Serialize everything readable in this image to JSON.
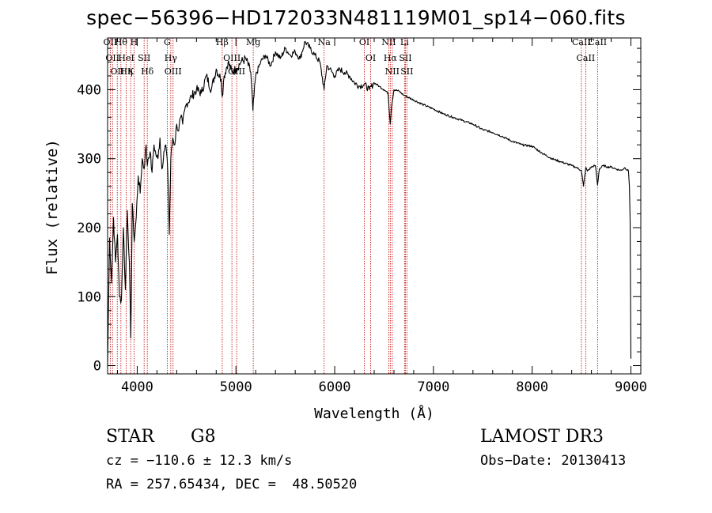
{
  "chart_data": {
    "type": "line",
    "title": "spec−56396−HD172033N481119M01_sp14−060.fits",
    "xlabel": "Wavelength (Å)",
    "ylabel": "Flux (relative)",
    "xlim": [
      3700,
      9100
    ],
    "ylim": [
      -12,
      475
    ],
    "xticks": [
      4000,
      5000,
      6000,
      7000,
      8000,
      9000
    ],
    "yticks": [
      0,
      100,
      200,
      300,
      400
    ],
    "series": [
      {
        "name": "spectrum",
        "x": [
          3700,
          3720,
          3740,
          3760,
          3780,
          3800,
          3820,
          3840,
          3860,
          3880,
          3900,
          3920,
          3935,
          3950,
          3970,
          3990,
          4010,
          4030,
          4050,
          4070,
          4090,
          4102,
          4110,
          4130,
          4150,
          4170,
          4190,
          4210,
          4230,
          4250,
          4270,
          4290,
          4310,
          4325,
          4340,
          4360,
          4380,
          4400,
          4420,
          4440,
          4460,
          4480,
          4500,
          4550,
          4600,
          4650,
          4700,
          4750,
          4800,
          4850,
          4861,
          4880,
          4920,
          4960,
          5000,
          5050,
          5100,
          5150,
          5172,
          5200,
          5250,
          5300,
          5350,
          5400,
          5450,
          5500,
          5550,
          5600,
          5650,
          5700,
          5750,
          5800,
          5850,
          5893,
          5920,
          5950,
          6000,
          6050,
          6100,
          6150,
          6200,
          6250,
          6300,
          6350,
          6400,
          6450,
          6500,
          6540,
          6563,
          6575,
          6600,
          6650,
          6700,
          6800,
          6900,
          7000,
          7100,
          7200,
          7300,
          7400,
          7500,
          7600,
          7700,
          7800,
          7900,
          8000,
          8100,
          8200,
          8300,
          8400,
          8450,
          8498,
          8520,
          8542,
          8560,
          8600,
          8640,
          8662,
          8680,
          8720,
          8760,
          8800,
          8850,
          8900,
          8940,
          8975,
          8985,
          8992,
          9000
        ],
        "values": [
          0,
          185,
          120,
          215,
          150,
          190,
          100,
          95,
          200,
          110,
          225,
          150,
          40,
          235,
          180,
          215,
          275,
          250,
          300,
          285,
          320,
          290,
          300,
          310,
          280,
          320,
          305,
          300,
          330,
          285,
          310,
          320,
          280,
          190,
          300,
          330,
          320,
          350,
          340,
          360,
          350,
          370,
          380,
          390,
          400,
          395,
          420,
          400,
          430,
          415,
          390,
          420,
          440,
          425,
          430,
          440,
          445,
          425,
          370,
          420,
          440,
          450,
          435,
          455,
          445,
          460,
          450,
          455,
          445,
          470,
          460,
          450,
          440,
          400,
          435,
          430,
          420,
          430,
          425,
          420,
          410,
          405,
          408,
          400,
          410,
          405,
          400,
          395,
          350,
          375,
          400,
          398,
          392,
          385,
          378,
          372,
          365,
          360,
          355,
          350,
          342,
          338,
          332,
          325,
          320,
          318,
          308,
          300,
          295,
          290,
          287,
          283,
          260,
          287,
          282,
          288,
          290,
          262,
          285,
          290,
          288,
          288,
          285,
          283,
          287,
          282,
          260,
          210,
          10
        ]
      }
    ],
    "lines": [
      {
        "x": 3727,
        "labels": [
          "OII"
        ]
      },
      {
        "x": 3750,
        "labels": [
          "OII"
        ]
      },
      {
        "x": 3798,
        "labels": [
          "OII"
        ]
      },
      {
        "x": 3835,
        "labels": [
          "Hθ"
        ]
      },
      {
        "x": 3889,
        "labels": [
          "HeI",
          "Hη"
        ]
      },
      {
        "x": 3934,
        "labels": [
          "K"
        ]
      },
      {
        "x": 3968,
        "labels": [
          "H"
        ]
      },
      {
        "x": 4070,
        "labels": [
          "SII"
        ]
      },
      {
        "x": 4102,
        "labels": [
          "Hδ"
        ]
      },
      {
        "x": 4304,
        "labels": [
          "G"
        ]
      },
      {
        "x": 4340,
        "labels": [
          "Hγ"
        ]
      },
      {
        "x": 4363,
        "labels": [
          "OIII"
        ]
      },
      {
        "x": 4861,
        "labels": [
          "Hβ"
        ]
      },
      {
        "x": 4959,
        "labels": [
          "OIII"
        ]
      },
      {
        "x": 5007,
        "labels": [
          "OIII"
        ]
      },
      {
        "x": 5175,
        "labels": [
          "Mg"
        ]
      },
      {
        "x": 5893,
        "labels": [
          "Na"
        ]
      },
      {
        "x": 6300,
        "labels": [
          "OI"
        ]
      },
      {
        "x": 6364,
        "labels": [
          "OI"
        ]
      },
      {
        "x": 6548,
        "labels": [
          "NII"
        ]
      },
      {
        "x": 6563,
        "labels": [
          "Hα"
        ]
      },
      {
        "x": 6583,
        "labels": [
          "NII"
        ]
      },
      {
        "x": 6707,
        "labels": [
          "Li"
        ]
      },
      {
        "x": 6716,
        "labels": [
          "SII"
        ]
      },
      {
        "x": 6731,
        "labels": [
          "SII"
        ]
      },
      {
        "x": 8498,
        "labels": [
          "CaII"
        ]
      },
      {
        "x": 8542,
        "labels": [
          "CaII"
        ]
      },
      {
        "x": 8662,
        "labels": [
          "CaII"
        ]
      }
    ]
  },
  "info": {
    "class": "STAR",
    "subclass": "G8",
    "survey": "LAMOST DR3",
    "cz": "cz = −110.6 ± 12.3 km/s",
    "obs_date": "Obs−Date: 20130413",
    "coords": "RA = 257.65434, DEC =  48.50520"
  }
}
